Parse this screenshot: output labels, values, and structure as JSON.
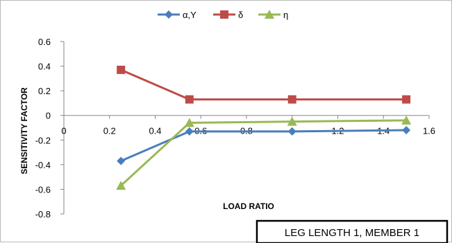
{
  "chart_data": {
    "type": "line",
    "title": "",
    "xlabel": "LOAD RATIO",
    "ylabel": "SENSITIVITY FACTOR",
    "xlim": [
      0,
      1.6
    ],
    "ylim": [
      -0.8,
      0.6
    ],
    "x_ticks": [
      "0",
      "0.2",
      "0.4",
      "0.6",
      "0.8",
      "1",
      "1.2",
      "1.4",
      "1.6"
    ],
    "y_ticks": [
      "0.6",
      "0.4",
      "0.2",
      "0",
      "-0.2",
      "-0.4",
      "-0.6",
      "-0.8"
    ],
    "grid": false,
    "legend_position": "top-center",
    "series": [
      {
        "name": "α,Y",
        "color": "#4a7ebb",
        "marker": "diamond",
        "x": [
          0.25,
          0.55,
          1.0,
          1.5
        ],
        "y": [
          -0.37,
          -0.13,
          -0.13,
          -0.12
        ]
      },
      {
        "name": "δ",
        "color": "#be4b48",
        "marker": "square",
        "x": [
          0.25,
          0.55,
          1.0,
          1.5
        ],
        "y": [
          0.37,
          0.13,
          0.13,
          0.13
        ]
      },
      {
        "name": "η",
        "color": "#98b954",
        "marker": "triangle",
        "x": [
          0.25,
          0.55,
          1.0,
          1.5
        ],
        "y": [
          -0.57,
          -0.06,
          -0.05,
          -0.04
        ]
      }
    ],
    "annotation": "LEG LENGTH 1, MEMBER 1"
  }
}
